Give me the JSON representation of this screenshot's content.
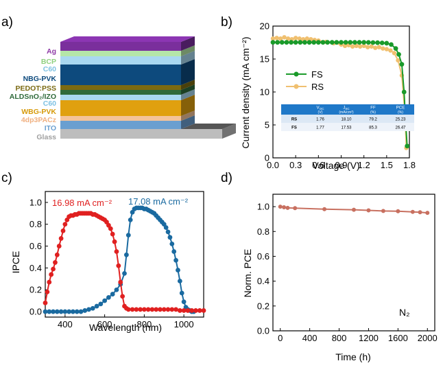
{
  "panels": {
    "a": {
      "letter": "a)"
    },
    "b": {
      "letter": "b)"
    },
    "c": {
      "letter": "c)"
    },
    "d": {
      "letter": "d)"
    }
  },
  "stack": {
    "layers": [
      {
        "label": "Ag",
        "color": "#7a2f9c",
        "label_color": "#8e3aa6"
      },
      {
        "label": "BCP",
        "color": "#b5e6a8",
        "label_color": "#8fd07f"
      },
      {
        "label": "C60",
        "color": "#a9d8f0",
        "label_color": "#7fc2e3"
      },
      {
        "label": "NBG-PVK",
        "color": "#0d4a7d",
        "label_color": "#0d4a7d"
      },
      {
        "label": "PEDOT:PSS",
        "color": "#7b6a12",
        "label_color": "#7b6a12"
      },
      {
        "label": "ALDSnO₂/IZO",
        "color": "#2f6a3a",
        "label_color": "#2f6a3a"
      },
      {
        "label": "C60",
        "color": "#a9d8f0",
        "label_color": "#7fc2e3"
      },
      {
        "label": "WBG-PVK",
        "color": "#e0a00f",
        "label_color": "#d69a0a"
      },
      {
        "label": "4dp3PACz",
        "color": "#f4c39a",
        "label_color": "#f0b080"
      },
      {
        "label": "ITO",
        "color": "#6a9fd0",
        "label_color": "#6a9fd0"
      },
      {
        "label": "Glass",
        "color": "#bdbdbd",
        "label_color": "#a0a0a0"
      }
    ]
  },
  "chart_data": [
    {
      "panel": "b",
      "type": "line",
      "xlabel": "Voltage (V)",
      "ylabel": "Current density (mA cm⁻²)",
      "xlim": [
        0,
        1.8
      ],
      "ylim": [
        0,
        20
      ],
      "xticks": [
        "0.0",
        "0.3",
        "0.6",
        "0.9",
        "1.2",
        "1.5",
        "1.8"
      ],
      "yticks": [
        "0",
        "5",
        "10",
        "15",
        "20"
      ],
      "legend_position": "middle-left",
      "series": [
        {
          "name": "FS",
          "color": "#1a9a2a",
          "x": [
            0.0,
            0.06,
            0.12,
            0.18,
            0.24,
            0.3,
            0.36,
            0.42,
            0.48,
            0.54,
            0.6,
            0.66,
            0.72,
            0.78,
            0.84,
            0.9,
            0.96,
            1.02,
            1.08,
            1.14,
            1.2,
            1.26,
            1.32,
            1.38,
            1.44,
            1.5,
            1.56,
            1.62,
            1.66,
            1.7,
            1.73,
            1.75,
            1.77
          ],
          "y": [
            17.53,
            17.53,
            17.53,
            17.53,
            17.53,
            17.53,
            17.53,
            17.53,
            17.53,
            17.53,
            17.53,
            17.53,
            17.53,
            17.53,
            17.53,
            17.53,
            17.53,
            17.53,
            17.53,
            17.53,
            17.53,
            17.52,
            17.5,
            17.48,
            17.45,
            17.4,
            17.2,
            16.6,
            15.7,
            14.2,
            10.0,
            5.5,
            1.8
          ]
        },
        {
          "name": "RS",
          "color": "#f0c070",
          "x": [
            0.0,
            0.05,
            0.1,
            0.15,
            0.2,
            0.25,
            0.3,
            0.35,
            0.4,
            0.45,
            0.5,
            0.55,
            0.6,
            0.7,
            0.8,
            0.9,
            0.95,
            1.0,
            1.05,
            1.1,
            1.15,
            1.2,
            1.25,
            1.3,
            1.35,
            1.4,
            1.45,
            1.5,
            1.55,
            1.6,
            1.65,
            1.7,
            1.74,
            1.76
          ],
          "y": [
            18.1,
            18.2,
            18.1,
            18.3,
            18.1,
            18.0,
            18.2,
            18.1,
            18.0,
            18.1,
            18.0,
            17.9,
            17.8,
            17.6,
            17.4,
            17.2,
            17.0,
            17.1,
            16.9,
            17.0,
            16.9,
            17.0,
            16.8,
            16.9,
            16.7,
            16.8,
            16.6,
            16.5,
            16.3,
            15.9,
            14.8,
            12.5,
            7.0,
            1.5
          ]
        }
      ],
      "table": {
        "headers": [
          {
            "main": "V",
            "sub": "OC",
            "unit": "(V)"
          },
          {
            "main": "J",
            "sub": "SC",
            "unit": "(mA/cm²)"
          },
          {
            "main": "FF",
            "sub": "",
            "unit": "(%)"
          },
          {
            "main": "PCE",
            "sub": "",
            "unit": "(%)"
          }
        ],
        "rows": [
          {
            "label": "RS",
            "cells": [
              "1.76",
              "18.10",
              "79.2",
              "25.23"
            ]
          },
          {
            "label": "FS",
            "cells": [
              "1.77",
              "17.53",
              "85.3",
              "26.47"
            ]
          }
        ],
        "header_color": "#1f78c8"
      }
    },
    {
      "panel": "c",
      "type": "line",
      "xlabel": "Wavelength (nm)",
      "ylabel": "IPCE",
      "xlim": [
        300,
        1100
      ],
      "ylim": [
        -0.05,
        1.1
      ],
      "xticks": [
        "400",
        "600",
        "800",
        "1000"
      ],
      "yticks": [
        "0.0",
        "0.2",
        "0.4",
        "0.6",
        "0.8",
        "1.0"
      ],
      "annotations": [
        {
          "text": "16.98 mA cm⁻²",
          "color": "#e02020"
        },
        {
          "text": "17.08 mA cm⁻²",
          "color": "#1a6aa0"
        }
      ],
      "series": [
        {
          "name": "",
          "color": "#e02020",
          "x": [
            300,
            310,
            320,
            330,
            340,
            350,
            360,
            370,
            380,
            390,
            400,
            410,
            420,
            430,
            440,
            450,
            460,
            470,
            480,
            490,
            500,
            510,
            520,
            530,
            540,
            550,
            560,
            570,
            580,
            590,
            600,
            610,
            620,
            630,
            640,
            650,
            660,
            670,
            680,
            690,
            700,
            710,
            720,
            740,
            760,
            780,
            800,
            820,
            840,
            860,
            880,
            900,
            920,
            940,
            960,
            980,
            1000,
            1020,
            1040,
            1060,
            1080,
            1100
          ],
          "y": [
            0.08,
            0.18,
            0.27,
            0.34,
            0.39,
            0.45,
            0.52,
            0.6,
            0.67,
            0.74,
            0.8,
            0.84,
            0.87,
            0.88,
            0.88,
            0.89,
            0.89,
            0.9,
            0.9,
            0.9,
            0.9,
            0.9,
            0.9,
            0.9,
            0.89,
            0.89,
            0.88,
            0.87,
            0.86,
            0.85,
            0.84,
            0.82,
            0.79,
            0.76,
            0.71,
            0.64,
            0.55,
            0.42,
            0.27,
            0.14,
            0.05,
            0.03,
            0.02,
            0.02,
            0.02,
            0.02,
            0.02,
            0.02,
            0.02,
            0.02,
            0.02,
            0.02,
            0.02,
            0.02,
            0.02,
            0.01,
            0.01,
            0.01,
            0.01,
            0.01,
            0.01,
            0.01
          ]
        },
        {
          "name": "",
          "color": "#1a6aa0",
          "x": [
            300,
            320,
            340,
            360,
            380,
            400,
            420,
            440,
            460,
            480,
            500,
            520,
            540,
            560,
            580,
            600,
            620,
            640,
            660,
            680,
            700,
            710,
            720,
            730,
            740,
            750,
            760,
            770,
            780,
            790,
            800,
            810,
            820,
            830,
            840,
            850,
            860,
            870,
            880,
            890,
            900,
            910,
            920,
            930,
            940,
            950,
            960,
            970,
            980,
            990,
            1000,
            1010,
            1020,
            1030,
            1040,
            1050
          ],
          "y": [
            0.0,
            0.0,
            0.0,
            0.0,
            0.0,
            0.0,
            0.0,
            0.0,
            0.0,
            0.0,
            0.01,
            0.02,
            0.03,
            0.05,
            0.07,
            0.1,
            0.13,
            0.16,
            0.2,
            0.25,
            0.35,
            0.52,
            0.7,
            0.84,
            0.91,
            0.94,
            0.95,
            0.95,
            0.95,
            0.95,
            0.94,
            0.94,
            0.93,
            0.92,
            0.91,
            0.9,
            0.88,
            0.86,
            0.84,
            0.82,
            0.8,
            0.77,
            0.73,
            0.68,
            0.62,
            0.55,
            0.47,
            0.38,
            0.28,
            0.17,
            0.09,
            0.04,
            0.02,
            0.01,
            0.0,
            0.0
          ]
        }
      ]
    },
    {
      "panel": "d",
      "type": "line",
      "xlabel": "Time (h)",
      "ylabel": "Norm. PCE",
      "xlim": [
        -100,
        2100
      ],
      "ylim": [
        0,
        1.1
      ],
      "xticks": [
        "0",
        "400",
        "800",
        "1200",
        "1600",
        "2000"
      ],
      "yticks": [
        "0.0",
        "0.2",
        "0.4",
        "0.6",
        "0.8",
        "1.0"
      ],
      "annotation": "N₂",
      "series": [
        {
          "name": "",
          "color": "#c87060",
          "x": [
            0,
            50,
            100,
            200,
            600,
            1000,
            1200,
            1400,
            1600,
            1800,
            1900,
            2000
          ],
          "y": [
            1.0,
            0.995,
            0.99,
            0.988,
            0.98,
            0.975,
            0.97,
            0.965,
            0.963,
            0.958,
            0.955,
            0.95
          ]
        }
      ]
    }
  ]
}
